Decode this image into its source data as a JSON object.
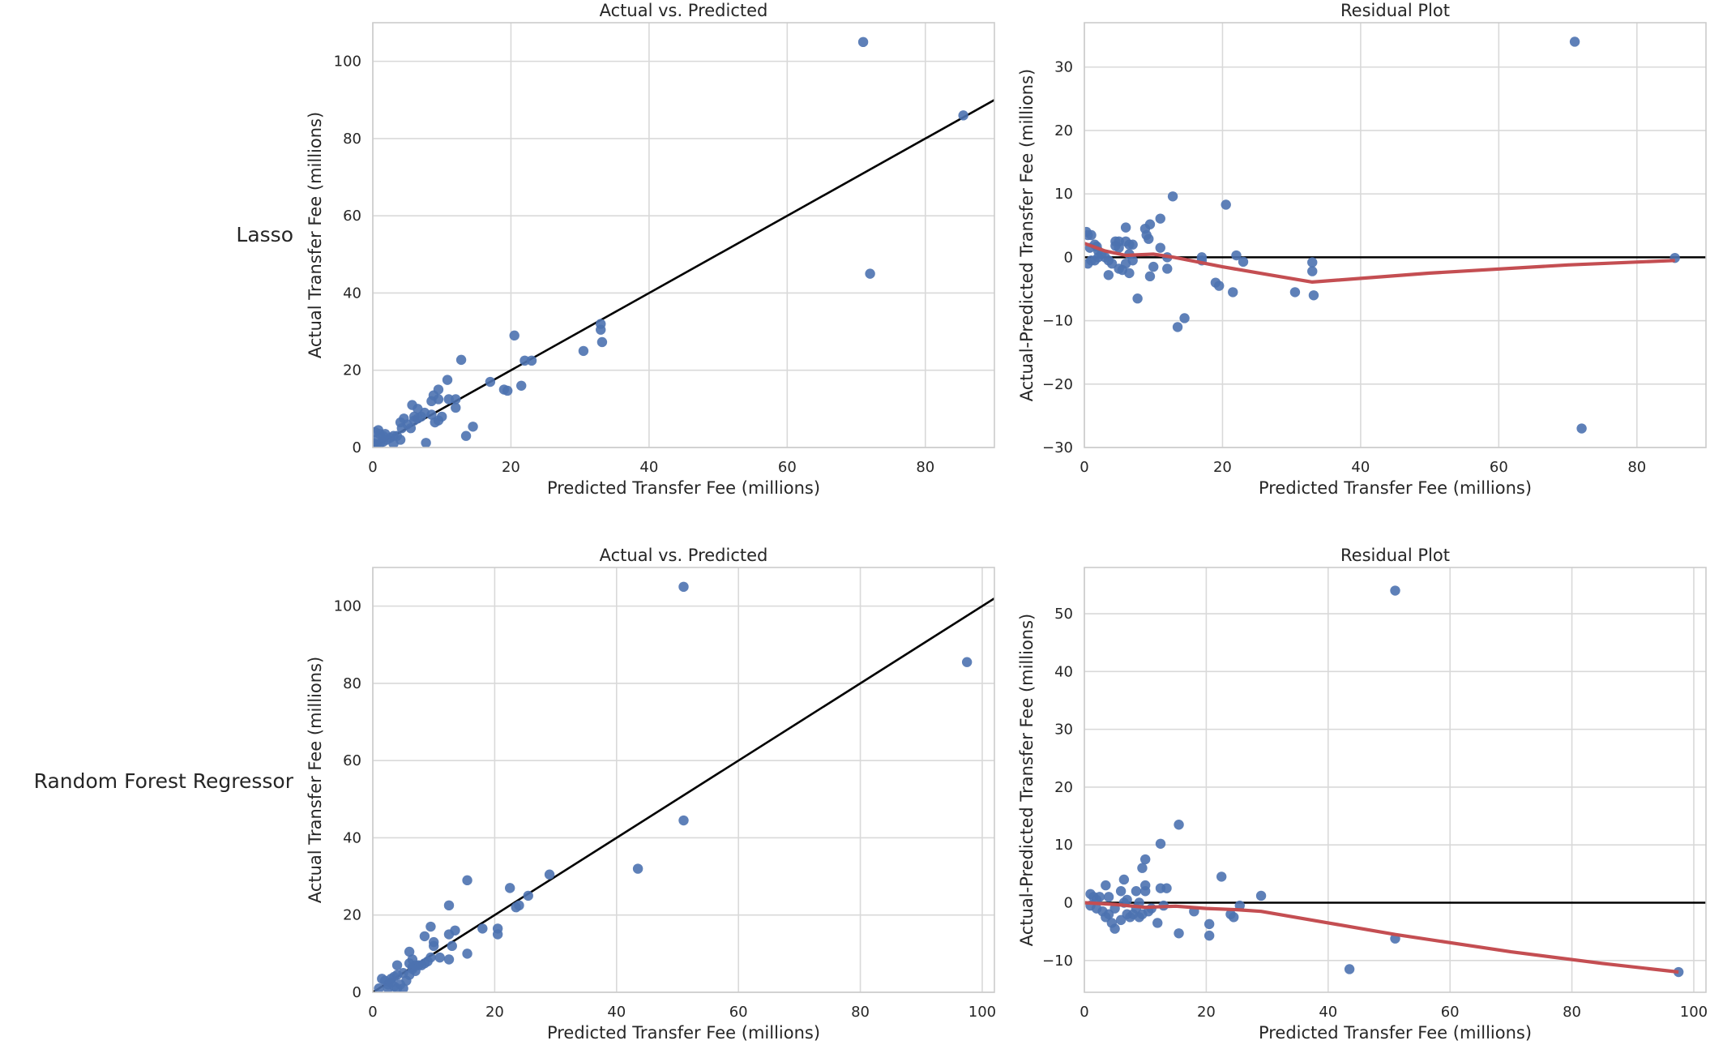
{
  "colors": {
    "point": "#4c72b0",
    "lowess": "#c44e52",
    "diagonal": "#000000",
    "grid": "#d9d9d9",
    "frame": "#cccccc"
  },
  "rows": [
    {
      "label": "Lasso"
    },
    {
      "label": "Random Forest Regressor"
    }
  ],
  "chart_data": [
    {
      "id": "lasso-actual-vs-predicted",
      "type": "scatter",
      "title": "Actual vs. Predicted",
      "xlabel": "Predicted Transfer Fee (millions)",
      "ylabel": "Actual Transfer Fee (millions)",
      "xlim": [
        0,
        90
      ],
      "ylim": [
        0,
        110
      ],
      "xticks": [
        0,
        20,
        40,
        60,
        80
      ],
      "yticks": [
        0,
        20,
        40,
        60,
        80,
        100
      ],
      "reference_line": {
        "type": "diagonal",
        "slope": 1,
        "intercept": 0
      },
      "points": [
        [
          71,
          105
        ],
        [
          85.5,
          86
        ],
        [
          72,
          45
        ],
        [
          20.5,
          29
        ],
        [
          12.8,
          22.7
        ],
        [
          22,
          22.5
        ],
        [
          23,
          22.5
        ],
        [
          33,
          32
        ],
        [
          33,
          30.5
        ],
        [
          33.2,
          27.3
        ],
        [
          30.5,
          25
        ],
        [
          17,
          17
        ],
        [
          19,
          15
        ],
        [
          19.5,
          14.7
        ],
        [
          21.5,
          16
        ],
        [
          10.8,
          17.5
        ],
        [
          14.5,
          5.4
        ],
        [
          13.5,
          3
        ],
        [
          7.7,
          1.2
        ],
        [
          11,
          12.5
        ],
        [
          12,
          12.5
        ],
        [
          12,
          10.3
        ],
        [
          9.5,
          15
        ],
        [
          8.8,
          13.5
        ],
        [
          9.5,
          12.5
        ],
        [
          8.5,
          12
        ],
        [
          10,
          8
        ],
        [
          9.5,
          7
        ],
        [
          9,
          6.5
        ],
        [
          8.5,
          8.5
        ],
        [
          7.5,
          9
        ],
        [
          7,
          8
        ],
        [
          6.5,
          7.5
        ],
        [
          6,
          8
        ],
        [
          5.7,
          11
        ],
        [
          6.5,
          10
        ],
        [
          6,
          7
        ],
        [
          5,
          6
        ],
        [
          5.5,
          5
        ],
        [
          4.5,
          7.5
        ],
        [
          4,
          6.5
        ],
        [
          4.2,
          5
        ],
        [
          3.5,
          3
        ],
        [
          3,
          3
        ],
        [
          4,
          2
        ],
        [
          2.5,
          2.5
        ],
        [
          2,
          2
        ],
        [
          1.5,
          3
        ],
        [
          1,
          3.5
        ],
        [
          0.8,
          4.5
        ],
        [
          0.3,
          4
        ],
        [
          1.5,
          1.5
        ],
        [
          1,
          1
        ],
        [
          0.5,
          2
        ],
        [
          0.2,
          1
        ],
        [
          0.5,
          0.5
        ],
        [
          1.8,
          3.5
        ],
        [
          3,
          1
        ]
      ]
    },
    {
      "id": "lasso-residual-plot",
      "type": "scatter",
      "title": "Residual Plot",
      "xlabel": "Predicted Transfer Fee (millions)",
      "ylabel": "Actual-Predicted Transfer Fee (millions)",
      "xlim": [
        0,
        90
      ],
      "ylim": [
        -30,
        37
      ],
      "xticks": [
        0,
        20,
        40,
        60,
        80
      ],
      "yticks": [
        -30,
        -20,
        -10,
        0,
        10,
        20,
        30
      ],
      "reference_line": {
        "type": "horizontal",
        "y": 0
      },
      "lowess": [
        [
          0,
          2.2
        ],
        [
          3,
          1
        ],
        [
          6,
          0.3
        ],
        [
          10,
          0.5
        ],
        [
          13,
          0
        ],
        [
          20,
          -1.5
        ],
        [
          27,
          -2.8
        ],
        [
          33,
          -3.9
        ],
        [
          50,
          -2.5
        ],
        [
          70,
          -1.2
        ],
        [
          85.5,
          -0.5
        ]
      ],
      "points": [
        [
          71,
          34
        ],
        [
          72,
          -27
        ],
        [
          85.5,
          -0.1
        ],
        [
          12.8,
          9.6
        ],
        [
          20.5,
          8.3
        ],
        [
          11,
          6.1
        ],
        [
          9.5,
          5.2
        ],
        [
          6,
          4.7
        ],
        [
          8.8,
          4.5
        ],
        [
          9,
          3.5
        ],
        [
          9.3,
          2.9
        ],
        [
          13.5,
          -11
        ],
        [
          14.5,
          -9.6
        ],
        [
          7.7,
          -6.5
        ],
        [
          33.2,
          -6
        ],
        [
          30.5,
          -5.5
        ],
        [
          21.5,
          -5.5
        ],
        [
          19,
          -4
        ],
        [
          19.5,
          -4.5
        ],
        [
          33,
          -2.2
        ],
        [
          33,
          -0.8
        ],
        [
          22,
          0.3
        ],
        [
          23,
          -0.7
        ],
        [
          17,
          -0.5
        ],
        [
          17,
          0
        ],
        [
          12,
          0
        ],
        [
          11,
          1.5
        ],
        [
          10,
          -1.5
        ],
        [
          9.5,
          -3
        ],
        [
          12,
          -1.8
        ],
        [
          7,
          2
        ],
        [
          6.5,
          2
        ],
        [
          6,
          2.5
        ],
        [
          5,
          2.5
        ],
        [
          4.5,
          2.5
        ],
        [
          4.5,
          1.8
        ],
        [
          5,
          1.5
        ],
        [
          6.5,
          0.5
        ],
        [
          7,
          -0.5
        ],
        [
          6,
          -1
        ],
        [
          5.5,
          -2
        ],
        [
          5,
          -1.8
        ],
        [
          6.5,
          -2.5
        ],
        [
          3.5,
          -2.8
        ],
        [
          4,
          -1
        ],
        [
          3.5,
          -0.5
        ],
        [
          3,
          0
        ],
        [
          2.5,
          0.5
        ],
        [
          2,
          1
        ],
        [
          1.8,
          1.7
        ],
        [
          1.5,
          2
        ],
        [
          1,
          3.5
        ],
        [
          0.5,
          3.5
        ],
        [
          0.3,
          4
        ],
        [
          0.8,
          1.5
        ],
        [
          1,
          -0.5
        ],
        [
          0.5,
          -1
        ],
        [
          1.5,
          -0.5
        ],
        [
          2,
          0
        ]
      ]
    },
    {
      "id": "rf-actual-vs-predicted",
      "type": "scatter",
      "title": "Actual vs. Predicted",
      "xlabel": "Predicted Transfer Fee (millions)",
      "ylabel": "Actual Transfer Fee (millions)",
      "xlim": [
        0,
        102
      ],
      "ylim": [
        0,
        110
      ],
      "xticks": [
        0,
        20,
        40,
        60,
        80,
        100
      ],
      "yticks": [
        0,
        20,
        40,
        60,
        80,
        100
      ],
      "reference_line": {
        "type": "diagonal",
        "slope": 1,
        "intercept": 0
      },
      "points": [
        [
          51,
          105
        ],
        [
          97.5,
          85.5
        ],
        [
          51,
          44.5
        ],
        [
          43.5,
          32
        ],
        [
          29,
          30.5
        ],
        [
          15.5,
          29
        ],
        [
          22.5,
          27
        ],
        [
          25.5,
          25
        ],
        [
          24,
          22.5
        ],
        [
          23.5,
          22
        ],
        [
          12.5,
          22.5
        ],
        [
          18,
          16.5
        ],
        [
          20.5,
          16.5
        ],
        [
          20.5,
          15
        ],
        [
          15.5,
          10
        ],
        [
          13.5,
          16
        ],
        [
          12.5,
          15
        ],
        [
          13,
          12
        ],
        [
          9.5,
          17
        ],
        [
          8.5,
          14.5
        ],
        [
          10,
          13
        ],
        [
          10,
          12
        ],
        [
          11,
          9
        ],
        [
          12.5,
          8.5
        ],
        [
          9.5,
          9
        ],
        [
          9,
          8
        ],
        [
          8.5,
          7.5
        ],
        [
          8,
          7
        ],
        [
          7.5,
          7
        ],
        [
          7,
          7
        ],
        [
          6.5,
          6.5
        ],
        [
          6,
          10.5
        ],
        [
          6.5,
          8.5
        ],
        [
          6,
          7.5
        ],
        [
          6.5,
          6
        ],
        [
          7,
          5.5
        ],
        [
          6,
          4.5
        ],
        [
          5.5,
          3
        ],
        [
          5,
          5
        ],
        [
          4,
          7
        ],
        [
          4,
          4.5
        ],
        [
          3.5,
          4
        ],
        [
          3,
          3.5
        ],
        [
          3,
          2.5
        ],
        [
          2.5,
          2
        ],
        [
          2,
          3
        ],
        [
          1.5,
          3.5
        ],
        [
          4.5,
          2
        ],
        [
          4,
          1
        ],
        [
          3.5,
          1.5
        ],
        [
          1,
          1
        ],
        [
          2.5,
          1
        ],
        [
          5,
          1
        ]
      ]
    },
    {
      "id": "rf-residual-plot",
      "type": "scatter",
      "title": "Residual Plot",
      "xlabel": "Predicted Transfer Fee (millions)",
      "ylabel": "Actual-Predicted Transfer Fee (millions)",
      "xlim": [
        0,
        102
      ],
      "ylim": [
        -15.5,
        58
      ],
      "xticks": [
        0,
        20,
        40,
        60,
        80,
        100
      ],
      "yticks": [
        -10,
        0,
        10,
        20,
        30,
        40,
        50
      ],
      "reference_line": {
        "type": "horizontal",
        "y": 0
      },
      "lowess": [
        [
          0,
          0
        ],
        [
          5,
          -0.3
        ],
        [
          10,
          -0.8
        ],
        [
          15,
          -0.6
        ],
        [
          20,
          -1
        ],
        [
          25,
          -1.2
        ],
        [
          29,
          -1.5
        ],
        [
          40,
          -3.5
        ],
        [
          51,
          -5.5
        ],
        [
          70,
          -8.5
        ],
        [
          85,
          -10.5
        ],
        [
          97.5,
          -12
        ]
      ],
      "points": [
        [
          51,
          54
        ],
        [
          97.5,
          -12
        ],
        [
          43.5,
          -11.5
        ],
        [
          51,
          -6.2
        ],
        [
          15.5,
          13.5
        ],
        [
          12.5,
          10.2
        ],
        [
          10,
          7.5
        ],
        [
          9.5,
          6
        ],
        [
          22.5,
          4.5
        ],
        [
          6.5,
          4
        ],
        [
          29,
          1.2
        ],
        [
          12.5,
          2.5
        ],
        [
          13.5,
          2.5
        ],
        [
          10,
          3
        ],
        [
          10,
          2
        ],
        [
          3.5,
          3
        ],
        [
          8.5,
          2
        ],
        [
          6,
          2
        ],
        [
          4,
          1
        ],
        [
          2.5,
          1
        ],
        [
          1,
          1.5
        ],
        [
          1.5,
          1
        ],
        [
          2,
          0.5
        ],
        [
          1,
          -0.5
        ],
        [
          3,
          -1.5
        ],
        [
          4,
          -2
        ],
        [
          3.5,
          -2.5
        ],
        [
          4.5,
          -3.5
        ],
        [
          5,
          -4.5
        ],
        [
          6,
          -3
        ],
        [
          7,
          -2
        ],
        [
          7.5,
          -2.5
        ],
        [
          8,
          -2
        ],
        [
          9,
          -2.5
        ],
        [
          9.5,
          -2
        ],
        [
          10.5,
          -1.5
        ],
        [
          11,
          -1
        ],
        [
          12,
          -3.5
        ],
        [
          13,
          -0.5
        ],
        [
          15.5,
          -5.3
        ],
        [
          18,
          -1.5
        ],
        [
          20.5,
          -3.7
        ],
        [
          20.5,
          -5.7
        ],
        [
          24,
          -2
        ],
        [
          24.5,
          -2.5
        ],
        [
          25.5,
          -0.5
        ],
        [
          5,
          -1
        ],
        [
          6.5,
          0
        ],
        [
          7,
          0.5
        ],
        [
          8.5,
          -1
        ],
        [
          9,
          0
        ],
        [
          2,
          -1
        ]
      ]
    }
  ]
}
